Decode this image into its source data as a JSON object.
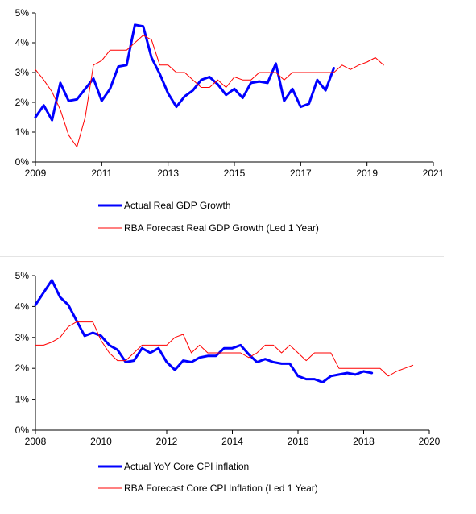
{
  "chart_data": [
    {
      "type": "line",
      "title": "",
      "xlabel": "",
      "ylabel": "",
      "xlim": [
        2009,
        2021
      ],
      "ylim": [
        0,
        5
      ],
      "grid": false,
      "legend_position": "bottom",
      "x_ticks": [
        2009,
        2011,
        2013,
        2015,
        2017,
        2019,
        2021
      ],
      "x_tick_labels": [
        "2009",
        "2011",
        "2013",
        "2015",
        "2017",
        "2019",
        "2021"
      ],
      "y_ticks": [
        0,
        1,
        2,
        3,
        4,
        5
      ],
      "y_tick_labels": [
        "0%",
        "1%",
        "2%",
        "3%",
        "4%",
        "5%"
      ],
      "series": [
        {
          "name": "Actual Real GDP Growth",
          "color": "#0000ff",
          "style": "thick",
          "points": [
            [
              2009.0,
              1.5
            ],
            [
              2009.25,
              1.9
            ],
            [
              2009.5,
              1.4
            ],
            [
              2009.75,
              2.65
            ],
            [
              2010.0,
              2.05
            ],
            [
              2010.25,
              2.1
            ],
            [
              2010.5,
              2.45
            ],
            [
              2010.75,
              2.8
            ],
            [
              2011.0,
              2.05
            ],
            [
              2011.25,
              2.45
            ],
            [
              2011.5,
              3.2
            ],
            [
              2011.75,
              3.25
            ],
            [
              2012.0,
              4.6
            ],
            [
              2012.25,
              4.55
            ],
            [
              2012.5,
              3.5
            ],
            [
              2012.75,
              2.95
            ],
            [
              2013.0,
              2.3
            ],
            [
              2013.25,
              1.85
            ],
            [
              2013.5,
              2.2
            ],
            [
              2013.75,
              2.4
            ],
            [
              2014.0,
              2.75
            ],
            [
              2014.25,
              2.85
            ],
            [
              2014.5,
              2.6
            ],
            [
              2014.75,
              2.25
            ],
            [
              2015.0,
              2.45
            ],
            [
              2015.25,
              2.15
            ],
            [
              2015.5,
              2.65
            ],
            [
              2015.75,
              2.7
            ],
            [
              2016.0,
              2.65
            ],
            [
              2016.25,
              3.3
            ],
            [
              2016.5,
              2.05
            ],
            [
              2016.75,
              2.45
            ],
            [
              2017.0,
              1.85
            ],
            [
              2017.25,
              1.95
            ],
            [
              2017.5,
              2.75
            ],
            [
              2017.75,
              2.4
            ],
            [
              2018.0,
              3.15
            ]
          ]
        },
        {
          "name": "RBA Forecast Real GDP Growth (Led 1 Year)",
          "color": "#ff0000",
          "style": "thin",
          "points": [
            [
              2009.0,
              3.1
            ],
            [
              2009.25,
              2.75
            ],
            [
              2009.5,
              2.35
            ],
            [
              2009.75,
              1.75
            ],
            [
              2010.0,
              0.9
            ],
            [
              2010.25,
              0.5
            ],
            [
              2010.5,
              1.5
            ],
            [
              2010.75,
              3.25
            ],
            [
              2011.0,
              3.4
            ],
            [
              2011.25,
              3.75
            ],
            [
              2011.5,
              3.75
            ],
            [
              2011.75,
              3.75
            ],
            [
              2012.0,
              4.0
            ],
            [
              2012.25,
              4.25
            ],
            [
              2012.5,
              4.1
            ],
            [
              2012.75,
              3.25
            ],
            [
              2013.0,
              3.25
            ],
            [
              2013.25,
              3.0
            ],
            [
              2013.5,
              3.0
            ],
            [
              2013.75,
              2.75
            ],
            [
              2014.0,
              2.5
            ],
            [
              2014.25,
              2.5
            ],
            [
              2014.5,
              2.75
            ],
            [
              2014.75,
              2.5
            ],
            [
              2015.0,
              2.85
            ],
            [
              2015.25,
              2.75
            ],
            [
              2015.5,
              2.75
            ],
            [
              2015.75,
              3.0
            ],
            [
              2016.0,
              3.0
            ],
            [
              2016.25,
              3.0
            ],
            [
              2016.5,
              2.75
            ],
            [
              2016.75,
              3.0
            ],
            [
              2017.0,
              3.0
            ],
            [
              2017.25,
              3.0
            ],
            [
              2017.5,
              3.0
            ],
            [
              2017.75,
              3.0
            ],
            [
              2018.0,
              3.0
            ],
            [
              2018.25,
              3.25
            ],
            [
              2018.5,
              3.1
            ],
            [
              2018.75,
              3.25
            ],
            [
              2019.0,
              3.35
            ],
            [
              2019.25,
              3.5
            ],
            [
              2019.5,
              3.25
            ]
          ]
        }
      ]
    },
    {
      "type": "line",
      "title": "",
      "xlabel": "",
      "ylabel": "",
      "xlim": [
        2008,
        2020
      ],
      "ylim": [
        0,
        5
      ],
      "grid": false,
      "legend_position": "bottom",
      "x_ticks": [
        2008,
        2010,
        2012,
        2014,
        2016,
        2018,
        2020
      ],
      "x_tick_labels": [
        "2008",
        "2010",
        "2012",
        "2014",
        "2016",
        "2018",
        "2020"
      ],
      "y_ticks": [
        0,
        1,
        2,
        3,
        4,
        5
      ],
      "y_tick_labels": [
        "0%",
        "1%",
        "2%",
        "3%",
        "4%",
        "5%"
      ],
      "series": [
        {
          "name": "Actual YoY Core CPI inflation",
          "color": "#0000ff",
          "style": "thick",
          "points": [
            [
              2008.0,
              4.05
            ],
            [
              2008.25,
              4.45
            ],
            [
              2008.5,
              4.85
            ],
            [
              2008.75,
              4.3
            ],
            [
              2009.0,
              4.05
            ],
            [
              2009.25,
              3.55
            ],
            [
              2009.5,
              3.05
            ],
            [
              2009.75,
              3.15
            ],
            [
              2010.0,
              3.05
            ],
            [
              2010.25,
              2.75
            ],
            [
              2010.5,
              2.6
            ],
            [
              2010.75,
              2.2
            ],
            [
              2011.0,
              2.25
            ],
            [
              2011.25,
              2.65
            ],
            [
              2011.5,
              2.5
            ],
            [
              2011.75,
              2.65
            ],
            [
              2012.0,
              2.2
            ],
            [
              2012.25,
              1.95
            ],
            [
              2012.5,
              2.25
            ],
            [
              2012.75,
              2.2
            ],
            [
              2013.0,
              2.35
            ],
            [
              2013.25,
              2.4
            ],
            [
              2013.5,
              2.4
            ],
            [
              2013.75,
              2.65
            ],
            [
              2014.0,
              2.65
            ],
            [
              2014.25,
              2.75
            ],
            [
              2014.5,
              2.45
            ],
            [
              2014.75,
              2.2
            ],
            [
              2015.0,
              2.3
            ],
            [
              2015.25,
              2.2
            ],
            [
              2015.5,
              2.15
            ],
            [
              2015.75,
              2.15
            ],
            [
              2016.0,
              1.75
            ],
            [
              2016.25,
              1.65
            ],
            [
              2016.5,
              1.65
            ],
            [
              2016.75,
              1.55
            ],
            [
              2017.0,
              1.75
            ],
            [
              2017.25,
              1.8
            ],
            [
              2017.5,
              1.85
            ],
            [
              2017.75,
              1.8
            ],
            [
              2018.0,
              1.9
            ],
            [
              2018.25,
              1.85
            ]
          ]
        },
        {
          "name": "RBA Forecast Core CPI Inflation (Led 1 Year)",
          "color": "#ff0000",
          "style": "thin",
          "points": [
            [
              2008.0,
              2.75
            ],
            [
              2008.25,
              2.75
            ],
            [
              2008.5,
              2.85
            ],
            [
              2008.75,
              3.0
            ],
            [
              2009.0,
              3.35
            ],
            [
              2009.25,
              3.5
            ],
            [
              2009.5,
              3.5
            ],
            [
              2009.75,
              3.5
            ],
            [
              2010.0,
              2.9
            ],
            [
              2010.25,
              2.5
            ],
            [
              2010.5,
              2.25
            ],
            [
              2010.75,
              2.25
            ],
            [
              2011.0,
              2.5
            ],
            [
              2011.25,
              2.75
            ],
            [
              2011.5,
              2.75
            ],
            [
              2011.75,
              2.75
            ],
            [
              2012.0,
              2.75
            ],
            [
              2012.25,
              3.0
            ],
            [
              2012.5,
              3.1
            ],
            [
              2012.75,
              2.5
            ],
            [
              2013.0,
              2.75
            ],
            [
              2013.25,
              2.5
            ],
            [
              2013.5,
              2.5
            ],
            [
              2013.75,
              2.5
            ],
            [
              2014.0,
              2.5
            ],
            [
              2014.25,
              2.5
            ],
            [
              2014.5,
              2.35
            ],
            [
              2014.75,
              2.5
            ],
            [
              2015.0,
              2.75
            ],
            [
              2015.25,
              2.75
            ],
            [
              2015.5,
              2.5
            ],
            [
              2015.75,
              2.75
            ],
            [
              2016.0,
              2.5
            ],
            [
              2016.25,
              2.25
            ],
            [
              2016.5,
              2.5
            ],
            [
              2016.75,
              2.5
            ],
            [
              2017.0,
              2.5
            ],
            [
              2017.25,
              2.0
            ],
            [
              2017.5,
              2.0
            ],
            [
              2017.75,
              2.0
            ],
            [
              2018.0,
              2.0
            ],
            [
              2018.25,
              2.0
            ],
            [
              2018.5,
              2.0
            ],
            [
              2018.75,
              1.75
            ],
            [
              2019.0,
              1.9
            ],
            [
              2019.25,
              2.0
            ],
            [
              2019.5,
              2.1
            ]
          ]
        }
      ]
    }
  ]
}
